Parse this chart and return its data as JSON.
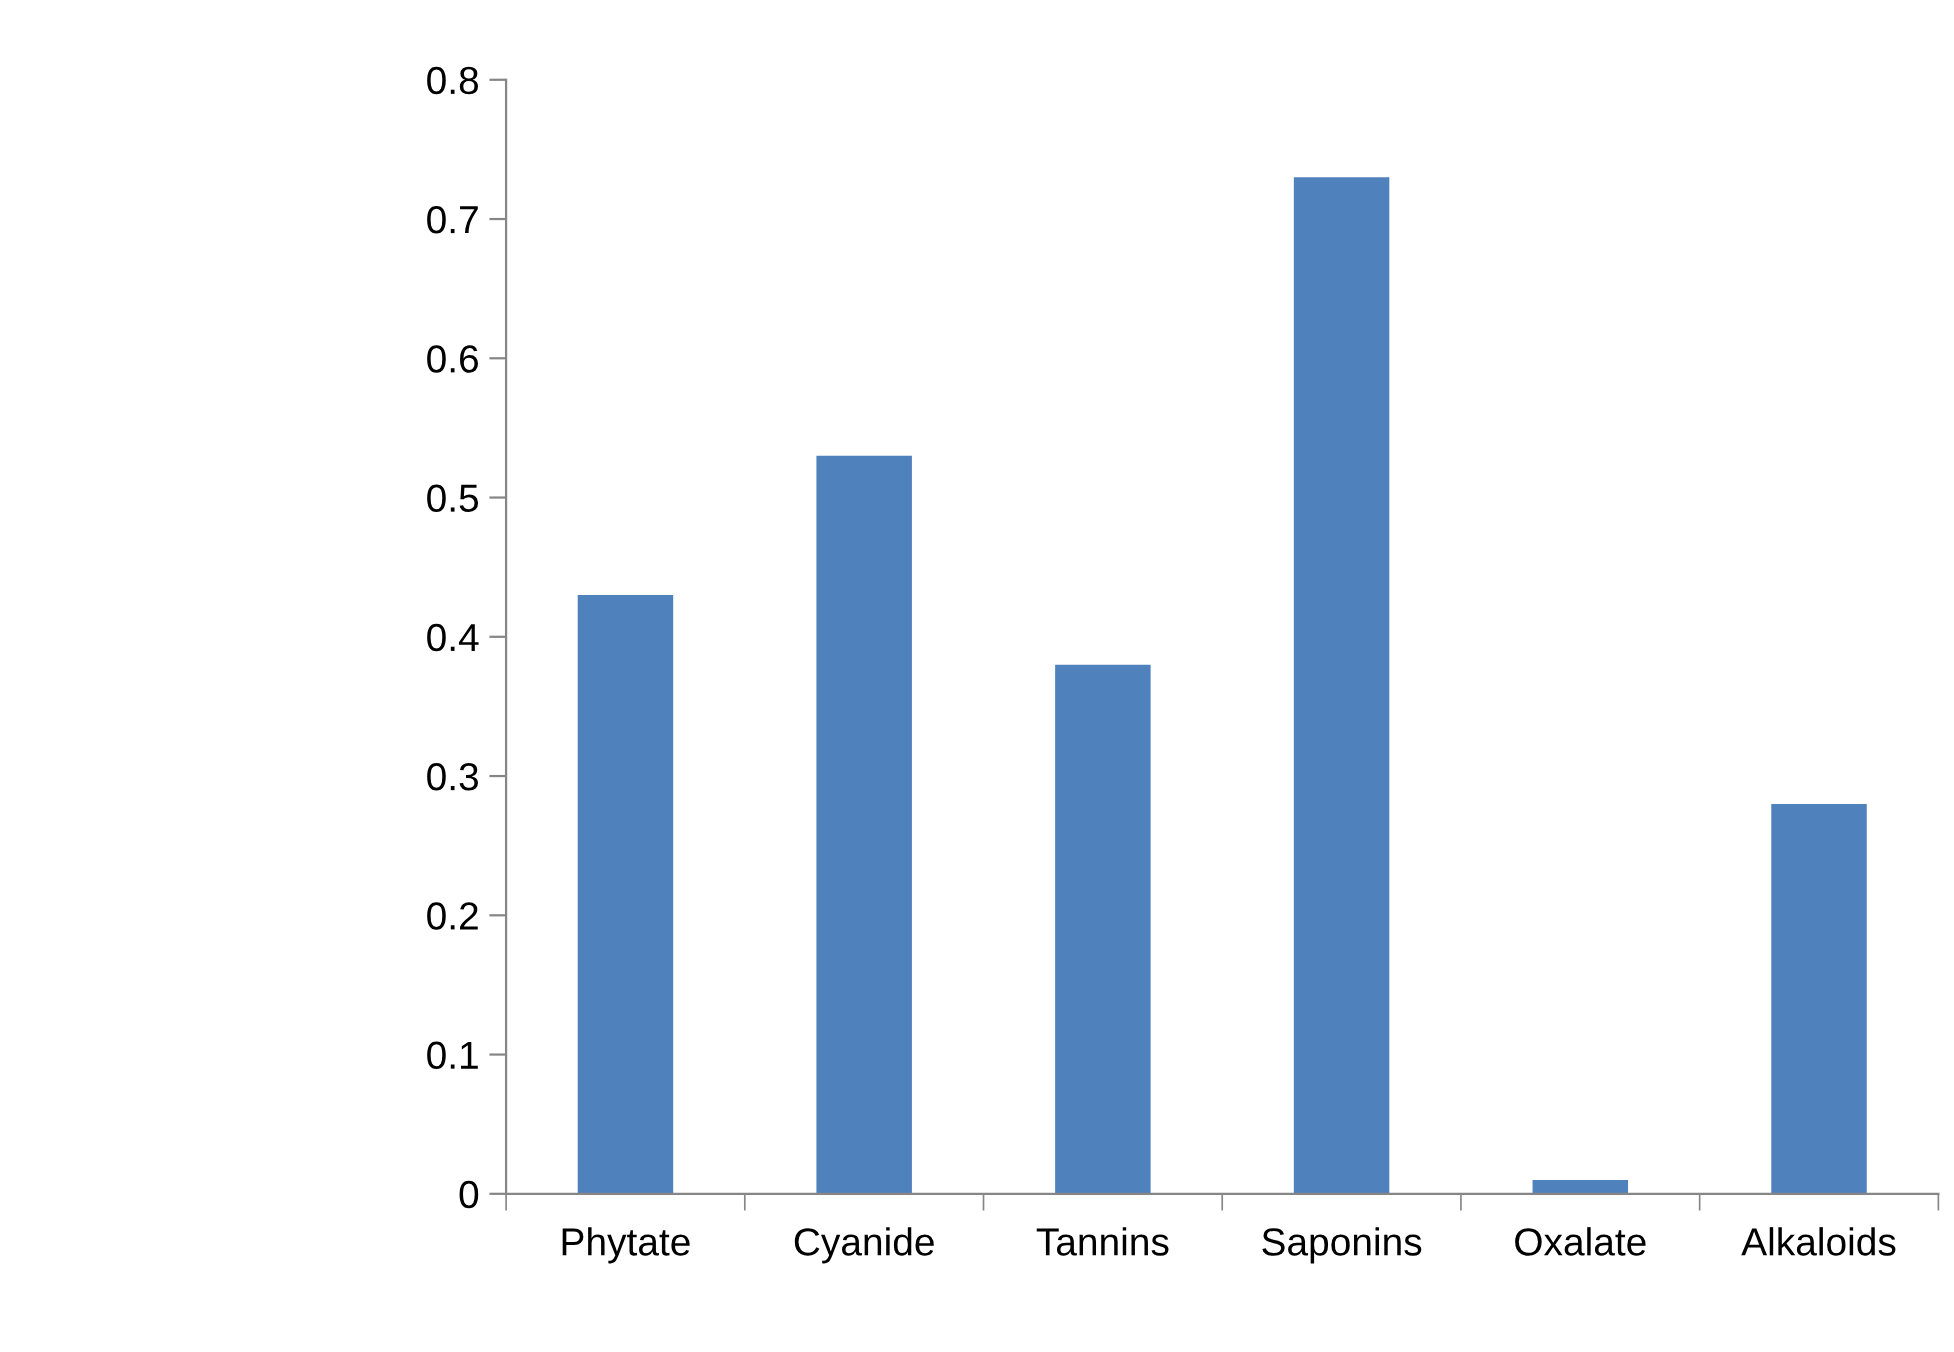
{
  "chart_data": {
    "type": "bar",
    "categories": [
      "Phytate",
      "Cyanide",
      "Tannins",
      "Saponins",
      "Oxalate",
      "Alkaloids"
    ],
    "values": [
      0.43,
      0.53,
      0.38,
      0.73,
      0.01,
      0.28
    ],
    "color": "#4f81bd",
    "ylim": [
      0,
      0.8
    ],
    "yticks": [
      {
        "value": 0,
        "label": "0"
      },
      0.1,
      0.2,
      0.3,
      0.4,
      0.5,
      0.6,
      0.7,
      0.8
    ],
    "grid": false,
    "legend": false
  }
}
